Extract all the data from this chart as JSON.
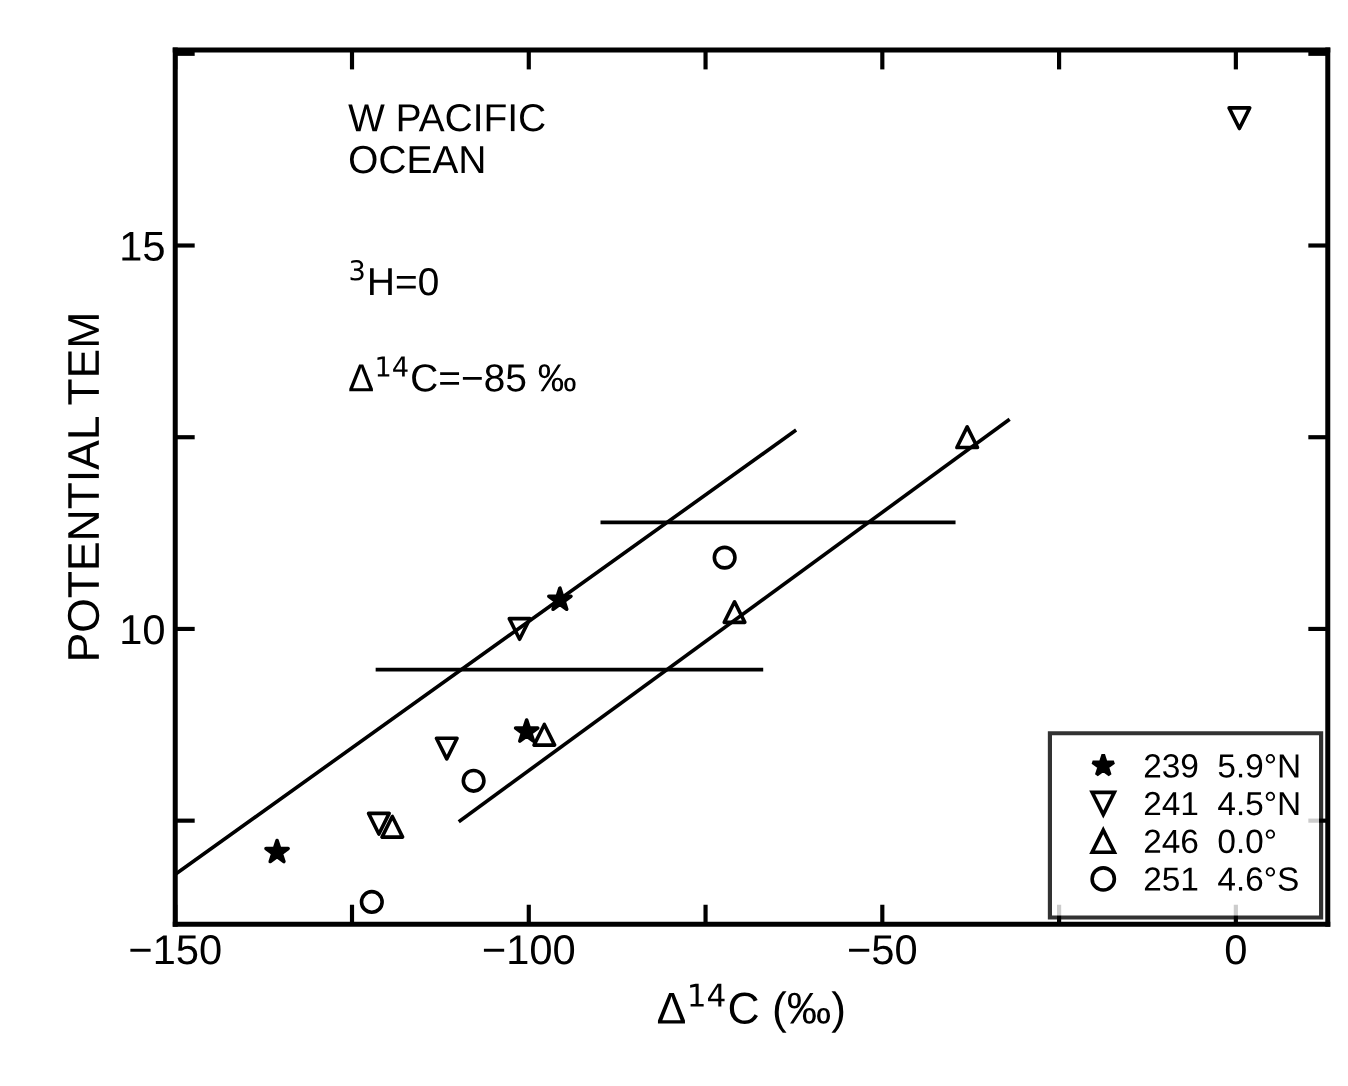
{
  "chart_data": {
    "type": "scatter",
    "xlabel": "Δ$^{14}$C (‰)",
    "ylabel": "POTENTIAL TEM",
    "annotations": [
      "W PACIFIC\nOCEAN",
      "$^{3}$H=0",
      "Δ$^{14}$C=−85 ‰"
    ],
    "series": [
      {
        "name": "239  5.9°N",
        "color": "#000000",
        "marker": "star",
        "x": [
          -135.6,
          -95.6,
          -100.3
        ],
        "values": [
          7.09,
          10.38,
          8.66
        ]
      },
      {
        "name": "241  4.5°N",
        "color": "#000000",
        "marker": "triangle_down",
        "x": [
          0.5,
          -101.3,
          -111.6,
          -121.2
        ],
        "values": [
          16.66,
          10.0,
          8.44,
          7.46
        ]
      },
      {
        "name": "246  0.0°",
        "color": "#000000",
        "marker": "triangle",
        "x": [
          -38,
          -70.9,
          -97.8,
          -119.3
        ],
        "values": [
          12.5,
          10.22,
          8.62,
          7.42
        ]
      },
      {
        "name": "251  4.6°S",
        "color": "#000000",
        "marker": "circle",
        "x": [
          -72.3,
          -107.8,
          -122.2
        ],
        "values": [
          10.93,
          8.02,
          6.44
        ]
      },
      {
        "type": "line",
        "color": "#000000",
        "x": [
          -150,
          -62.4
        ],
        "values": [
          6.8,
          12.58
        ]
      },
      {
        "type": "line",
        "color": "#000000",
        "x": [
          -109.7,
          -32.2
        ],
        "values": [
          7.5,
          12.72
        ]
      },
      {
        "type": "line",
        "color": "#000000",
        "x": [
          -89.6,
          -39.9
        ],
        "values": [
          11.39,
          11.39
        ]
      },
      {
        "type": "line",
        "color": "#000000",
        "x": [
          -121.4,
          -67.1
        ],
        "values": [
          9.47,
          9.47
        ]
      }
    ],
    "xlim": [
      -150,
      13
    ],
    "ylim": [
      6.15,
      17.55
    ],
    "xticks": [
      -150,
      {
        "value": -125,
        "label": null
      },
      -100,
      {
        "value": -75,
        "label": null
      },
      -50,
      {
        "value": -25,
        "label": null
      },
      0
    ],
    "yticks": [
      {
        "value": 7.5,
        "label": null
      },
      10,
      {
        "value": 12.5,
        "label": null
      },
      15,
      {
        "value": 17.5,
        "label": null
      }
    ],
    "grid": false,
    "legend": "bottom right",
    "line_style": "solid"
  }
}
